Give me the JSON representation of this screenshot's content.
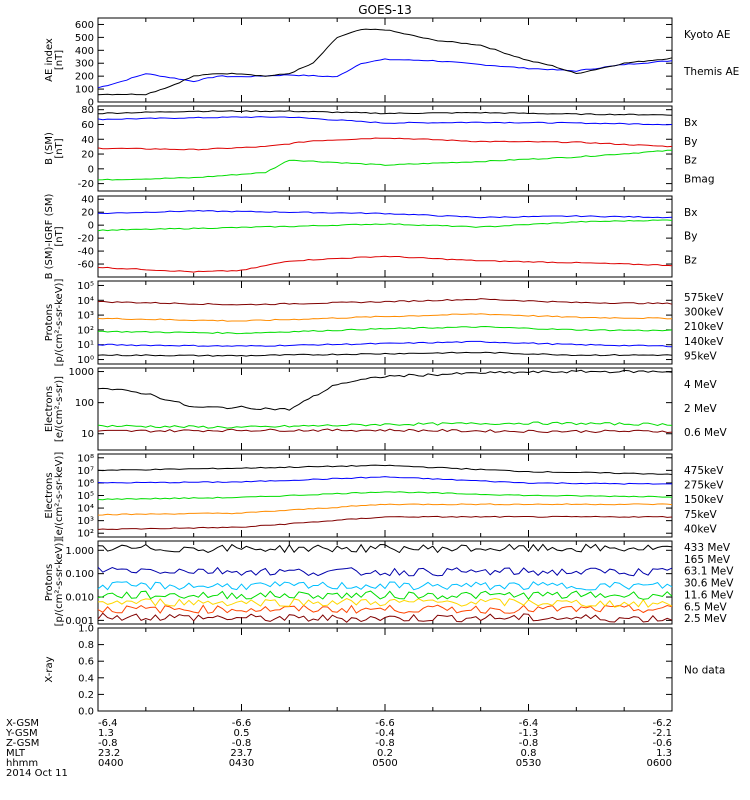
{
  "figure": {
    "title": "GOES-13",
    "date_label": "2014 Oct 11",
    "x_ticks": [
      "0400",
      "0430",
      "0500",
      "0530",
      "0600"
    ],
    "ephemeris": [
      {
        "label": "X-GSM",
        "values": [
          "-6.4",
          "-6.6",
          "-6.6",
          "-6.4",
          "-6.2"
        ]
      },
      {
        "label": "Y-GSM",
        "values": [
          "1.3",
          "0.5",
          "-0.4",
          "-1.3",
          "-2.1"
        ]
      },
      {
        "label": "Z-GSM",
        "values": [
          "-0.8",
          "-0.8",
          "-0.8",
          "-0.8",
          "-0.6"
        ]
      },
      {
        "label": "MLT",
        "values": [
          "23.2",
          "23.7",
          "0.2",
          "0.8",
          "1.3"
        ]
      },
      {
        "label": "hhmm",
        "values": [
          "0400",
          "0430",
          "0500",
          "0530",
          "0600"
        ]
      }
    ]
  },
  "chart_data": [
    {
      "type": "line",
      "ylabel": [
        "AE index",
        "[nT]"
      ],
      "ylim": [
        0,
        650
      ],
      "ticks": [
        [
          0,
          "0"
        ],
        [
          100,
          "100"
        ],
        [
          200,
          "200"
        ],
        [
          300,
          "300"
        ],
        [
          400,
          "400"
        ],
        [
          500,
          "500"
        ],
        [
          600,
          "600"
        ]
      ],
      "series": [
        {
          "name": "Kyoto AE",
          "color": "#0000ff",
          "x": [
            0,
            5,
            10,
            20,
            25,
            30,
            40,
            50,
            55,
            60,
            70,
            80,
            90,
            100,
            110,
            120
          ],
          "y": [
            110,
            160,
            220,
            160,
            200,
            195,
            210,
            195,
            300,
            330,
            320,
            290,
            260,
            240,
            290,
            320
          ]
        },
        {
          "name": "Themis AE",
          "color": "#000000",
          "x": [
            0,
            10,
            15,
            20,
            25,
            30,
            35,
            40,
            45,
            50,
            55,
            60,
            70,
            80,
            90,
            95,
            100,
            110,
            115,
            120
          ],
          "y": [
            60,
            60,
            120,
            200,
            220,
            220,
            200,
            220,
            300,
            500,
            560,
            560,
            480,
            440,
            320,
            280,
            220,
            300,
            320,
            340
          ]
        }
      ]
    },
    {
      "type": "line",
      "ylabel": [
        "B (SM)",
        "[nT]"
      ],
      "ylim": [
        -30,
        85
      ],
      "ticks": [
        [
          -20,
          "-20"
        ],
        [
          0,
          "0"
        ],
        [
          20,
          "20"
        ],
        [
          40,
          "40"
        ],
        [
          60,
          "60"
        ],
        [
          80,
          "80"
        ]
      ],
      "series": [
        {
          "name": "Bx",
          "color": "#0000ff",
          "x": [
            0,
            30,
            40,
            60,
            80,
            100,
            120
          ],
          "y": [
            67,
            70,
            70,
            62,
            63,
            62,
            60
          ]
        },
        {
          "name": "By",
          "color": "#00dd00",
          "x": [
            0,
            20,
            35,
            40,
            60,
            80,
            100,
            120
          ],
          "y": [
            -15,
            -12,
            -5,
            12,
            5,
            10,
            16,
            25
          ]
        },
        {
          "name": "Bz",
          "color": "#dd0000",
          "x": [
            0,
            20,
            35,
            45,
            60,
            80,
            100,
            120
          ],
          "y": [
            28,
            26,
            30,
            38,
            42,
            37,
            36,
            30
          ]
        },
        {
          "name": "Bmag",
          "color": "#000000",
          "x": [
            0,
            20,
            40,
            60,
            80,
            100,
            120
          ],
          "y": [
            75,
            78,
            78,
            75,
            76,
            74,
            73
          ]
        }
      ]
    },
    {
      "type": "line",
      "ylabel": [
        "B (SM)-IGRF (SM)",
        "[nT]"
      ],
      "ylim": [
        -80,
        45
      ],
      "ticks": [
        [
          -60,
          "-60"
        ],
        [
          -40,
          "-40"
        ],
        [
          -20,
          "-20"
        ],
        [
          0,
          "0"
        ],
        [
          20,
          "20"
        ],
        [
          40,
          "40"
        ]
      ],
      "series": [
        {
          "name": "Bx",
          "color": "#0000ff",
          "x": [
            0,
            20,
            40,
            60,
            80,
            100,
            120
          ],
          "y": [
            18,
            22,
            20,
            18,
            12,
            14,
            12
          ]
        },
        {
          "name": "By",
          "color": "#00dd00",
          "x": [
            0,
            20,
            40,
            60,
            80,
            100,
            120
          ],
          "y": [
            -8,
            -5,
            -2,
            2,
            -3,
            5,
            8
          ]
        },
        {
          "name": "Bz",
          "color": "#dd0000",
          "x": [
            0,
            20,
            30,
            40,
            60,
            80,
            100,
            120
          ],
          "y": [
            -65,
            -72,
            -70,
            -55,
            -48,
            -55,
            -58,
            -62
          ]
        }
      ]
    },
    {
      "type": "line",
      "ylog": true,
      "ylabel": [
        "Protons",
        "[p/(cm²-s-sr-keV)]"
      ],
      "ylim": [
        0.5,
        200000
      ],
      "ticks": [
        [
          1,
          "10⁰"
        ],
        [
          10,
          "10¹"
        ],
        [
          100,
          "10²"
        ],
        [
          1000,
          "10³"
        ],
        [
          10000,
          "10⁴"
        ],
        [
          100000,
          "10⁵"
        ]
      ],
      "series": [
        {
          "name": "575keV",
          "color": "#800000",
          "x": [
            0,
            30,
            60,
            80,
            100,
            120
          ],
          "y": [
            8000,
            5000,
            8000,
            12000,
            7000,
            6000
          ]
        },
        {
          "name": "300keV",
          "color": "#ff8c00",
          "x": [
            0,
            30,
            60,
            80,
            100,
            120
          ],
          "y": [
            600,
            400,
            800,
            1200,
            700,
            600
          ]
        },
        {
          "name": "210keV",
          "color": "#00dd00",
          "x": [
            0,
            30,
            60,
            80,
            100,
            120
          ],
          "y": [
            80,
            60,
            120,
            160,
            100,
            90
          ]
        },
        {
          "name": "140keV",
          "color": "#0000ff",
          "x": [
            0,
            30,
            60,
            80,
            100,
            120
          ],
          "y": [
            10,
            8,
            12,
            16,
            10,
            8
          ]
        },
        {
          "name": "95keV",
          "color": "#000000",
          "x": [
            0,
            30,
            60,
            80,
            100,
            120
          ],
          "y": [
            2,
            1.8,
            2.5,
            3,
            2,
            2
          ]
        }
      ]
    },
    {
      "type": "line",
      "ylog": true,
      "ylabel": [
        "Electrons",
        "[e/(cm²-s-sr)]"
      ],
      "ylim": [
        3,
        1300
      ],
      "ticks": [
        [
          10,
          "10"
        ],
        [
          100,
          "100"
        ],
        [
          1000,
          "1000"
        ]
      ],
      "series": [
        {
          "name": "4 MeV",
          "color": "#800000",
          "x": [
            0,
            30,
            60,
            90,
            120
          ],
          "y": [
            12,
            13,
            13,
            12,
            12
          ]
        },
        {
          "name": "2 MeV",
          "color": "#00dd00",
          "x": [
            0,
            30,
            60,
            90,
            120
          ],
          "y": [
            18,
            16,
            20,
            22,
            20
          ]
        },
        {
          "name": "0.6 MeV",
          "color": "#000000",
          "x": [
            0,
            10,
            20,
            30,
            40,
            50,
            60,
            80,
            100,
            120
          ],
          "y": [
            300,
            200,
            70,
            70,
            60,
            400,
            700,
            900,
            1000,
            1000
          ]
        }
      ]
    },
    {
      "type": "line",
      "ylog": true,
      "ylabel": [
        "Electrons",
        "[e/(cm²-s-sr-keV)]"
      ],
      "ylim": [
        50,
        200000000
      ],
      "ticks": [
        [
          100,
          "10²"
        ],
        [
          1000,
          "10³"
        ],
        [
          10000,
          "10⁴"
        ],
        [
          100000,
          "10⁵"
        ],
        [
          1000000,
          "10⁶"
        ],
        [
          10000000,
          "10⁷"
        ],
        [
          100000000,
          "10⁸"
        ]
      ],
      "series": [
        {
          "name": "475keV",
          "color": "#000000",
          "x": [
            0,
            30,
            60,
            90,
            120
          ],
          "y": [
            10000000,
            15000000,
            25000000,
            8000000,
            5000000
          ]
        },
        {
          "name": "275keV",
          "color": "#0000ff",
          "x": [
            0,
            30,
            60,
            90,
            120
          ],
          "y": [
            1000000,
            1200000,
            3000000,
            1000000,
            800000
          ]
        },
        {
          "name": "150keV",
          "color": "#00dd00",
          "x": [
            0,
            30,
            60,
            90,
            120
          ],
          "y": [
            50000,
            70000,
            200000,
            100000,
            80000
          ]
        },
        {
          "name": "75keV",
          "color": "#ff8c00",
          "x": [
            0,
            30,
            60,
            90,
            120
          ],
          "y": [
            3000,
            4000,
            20000,
            20000,
            20000
          ]
        },
        {
          "name": "40keV",
          "color": "#800000",
          "x": [
            0,
            30,
            60,
            90,
            120
          ],
          "y": [
            200,
            300,
            2000,
            2000,
            2000
          ]
        }
      ]
    },
    {
      "type": "line",
      "ylog": true,
      "ylabel": [
        "Protons",
        "[p/(cm²-s-sr-keV)]"
      ],
      "ylim": [
        0.0007,
        2.5
      ],
      "ticks": [
        [
          0.001,
          "0.001"
        ],
        [
          0.01,
          "0.010"
        ],
        [
          0.1,
          "0.100"
        ],
        [
          1,
          "1.000"
        ]
      ],
      "series": [
        {
          "name": "433 MeV",
          "color": "#800000",
          "x": [
            0,
            40,
            80,
            120
          ],
          "y": [
            0.0015,
            0.0012,
            0.0013,
            0.0012
          ]
        },
        {
          "name": "165 MeV",
          "color": "#ff4500",
          "x": [
            0,
            40,
            80,
            120
          ],
          "y": [
            0.003,
            0.003,
            0.003,
            0.003
          ]
        },
        {
          "name": "63.1 MeV",
          "color": "#ffd700",
          "x": [
            0,
            40,
            80,
            120
          ],
          "y": [
            0.006,
            0.006,
            0.006,
            0.005
          ]
        },
        {
          "name": "30.6 MeV",
          "color": "#00dd00",
          "x": [
            0,
            40,
            80,
            120
          ],
          "y": [
            0.012,
            0.012,
            0.012,
            0.012
          ]
        },
        {
          "name": "11.6 MeV",
          "color": "#00bfff",
          "x": [
            0,
            40,
            80,
            120
          ],
          "y": [
            0.03,
            0.03,
            0.03,
            0.03
          ]
        },
        {
          "name": "6.5 MeV",
          "color": "#0000aa",
          "x": [
            0,
            40,
            80,
            120
          ],
          "y": [
            0.15,
            0.12,
            0.12,
            0.12
          ]
        },
        {
          "name": "2.5 MeV",
          "color": "#000000",
          "x": [
            0,
            40,
            80,
            120
          ],
          "y": [
            1.2,
            1.2,
            1.2,
            1.2
          ]
        }
      ]
    },
    {
      "type": "line",
      "ylabel": [
        "X-ray",
        ""
      ],
      "ylim": [
        0,
        1
      ],
      "ticks": [
        [
          0,
          "0.0"
        ],
        [
          0.2,
          "0.2"
        ],
        [
          0.4,
          "0.4"
        ],
        [
          0.6,
          "0.6"
        ],
        [
          0.8,
          "0.8"
        ],
        [
          1,
          "1.0"
        ]
      ],
      "note": "No data",
      "series": []
    }
  ]
}
